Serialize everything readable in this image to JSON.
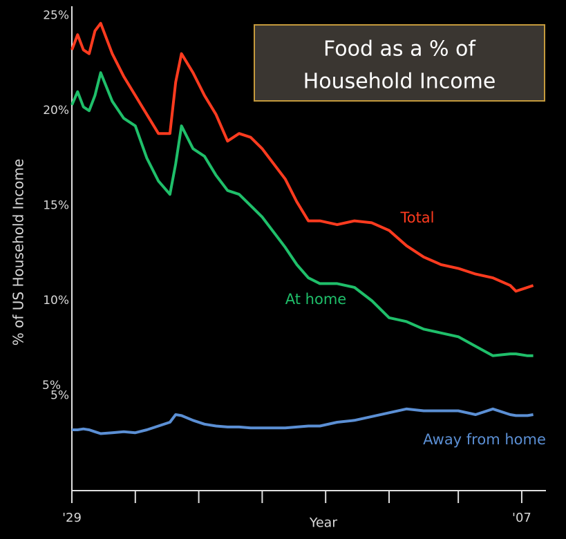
{
  "chart_data": {
    "type": "line",
    "title": [
      "Food as a % of",
      "Household Income"
    ],
    "x_label": "Year",
    "y_label": "% of US Household Income",
    "annotations": [
      "5%"
    ],
    "x": [
      1929,
      1930,
      1931,
      1932,
      1933,
      1934,
      1936,
      1938,
      1940,
      1942,
      1944,
      1946,
      1947,
      1948,
      1950,
      1952,
      1954,
      1956,
      1958,
      1960,
      1962,
      1964,
      1966,
      1968,
      1970,
      1972,
      1975,
      1978,
      1981,
      1984,
      1987,
      1990,
      1993,
      1996,
      1999,
      2002,
      2005,
      2006,
      2008,
      2009
    ],
    "series": [
      {
        "name": "Total",
        "color": "#ff3b1f",
        "values": [
          23.2,
          24.0,
          23.2,
          23.0,
          24.2,
          24.6,
          23.0,
          21.8,
          20.8,
          19.8,
          18.8,
          18.8,
          21.5,
          23.0,
          22.0,
          20.8,
          19.8,
          18.4,
          18.8,
          18.6,
          18.0,
          17.2,
          16.4,
          15.2,
          14.2,
          14.2,
          14.0,
          14.2,
          14.1,
          13.7,
          12.9,
          12.3,
          11.9,
          11.7,
          11.4,
          11.2,
          10.8,
          10.5,
          10.7,
          10.8
        ]
      },
      {
        "name": "At home",
        "color": "#1fbf6a",
        "values": [
          20.3,
          21.0,
          20.2,
          20.0,
          20.8,
          22.0,
          20.5,
          19.6,
          19.2,
          17.5,
          16.3,
          15.6,
          17.2,
          19.2,
          18.0,
          17.6,
          16.6,
          15.8,
          15.6,
          15.0,
          14.4,
          13.6,
          12.8,
          11.9,
          11.2,
          10.9,
          10.9,
          10.7,
          10.0,
          9.1,
          8.9,
          8.5,
          8.3,
          8.1,
          7.6,
          7.1,
          7.2,
          7.2,
          7.1,
          7.1
        ]
      },
      {
        "name": "Away from home",
        "color": "#5b8fd4",
        "values": [
          3.2,
          3.2,
          3.25,
          3.2,
          3.1,
          3.0,
          3.05,
          3.1,
          3.05,
          3.2,
          3.4,
          3.6,
          4.0,
          3.95,
          3.7,
          3.5,
          3.4,
          3.35,
          3.35,
          3.3,
          3.3,
          3.3,
          3.3,
          3.35,
          3.4,
          3.4,
          3.6,
          3.7,
          3.9,
          4.1,
          4.3,
          4.2,
          4.2,
          4.2,
          4.0,
          4.3,
          4.0,
          3.95,
          3.95,
          4.0
        ]
      }
    ],
    "xlim": [
      1929,
      2011.2
    ],
    "xticks": [
      {
        "value": 1929,
        "label": "'29"
      },
      1940,
      1951,
      1962,
      1973,
      1984,
      1996,
      {
        "value": 2007,
        "label": "'07"
      }
    ],
    "ylim": [
      0,
      25.5
    ],
    "yticks": [
      {
        "value": 5,
        "label": "5%"
      },
      {
        "value": 10,
        "label": "10%"
      },
      {
        "value": 15,
        "label": "15%"
      },
      {
        "value": 20,
        "label": "20%"
      },
      {
        "value": 25,
        "label": "25%"
      }
    ],
    "grid": false
  }
}
